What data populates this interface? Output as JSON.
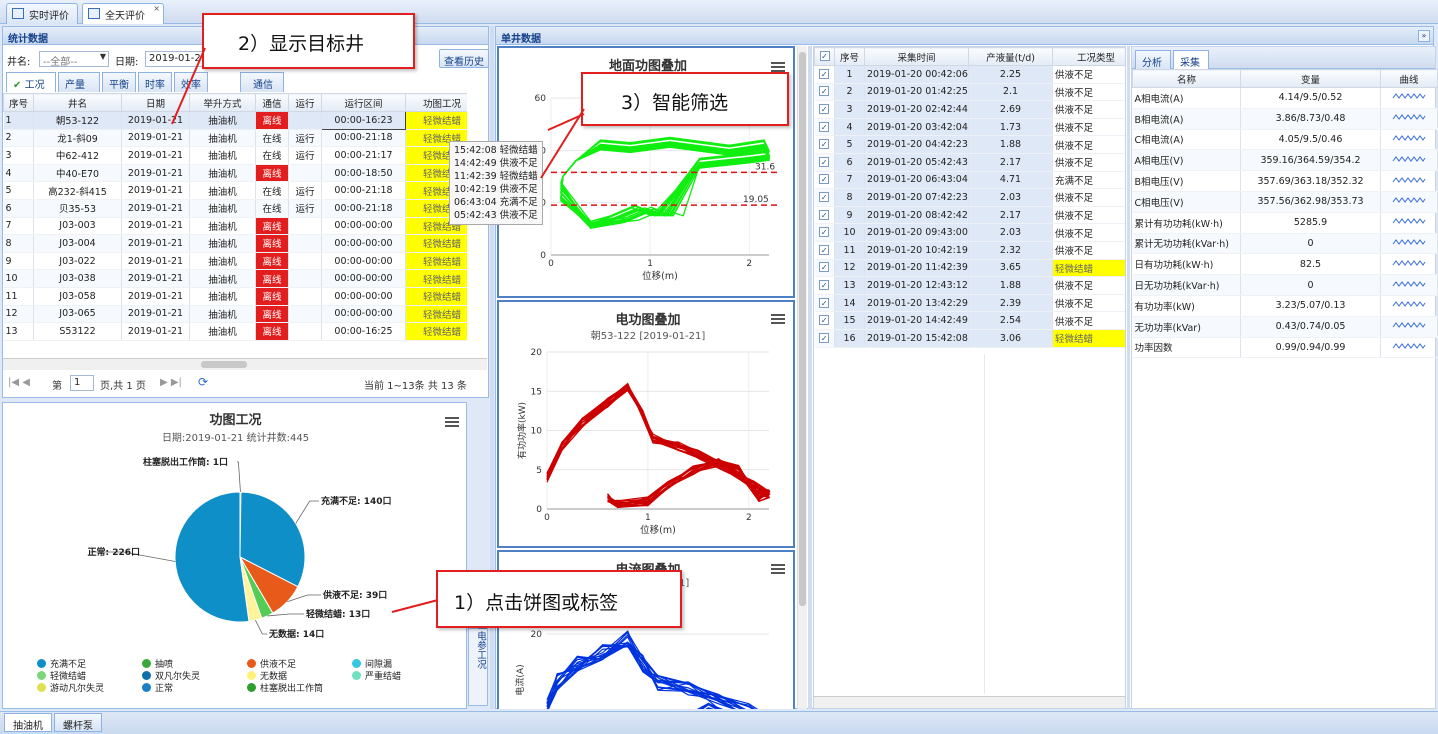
{
  "tabs": [
    {
      "label": "实时评价"
    },
    {
      "label": "全天评价"
    }
  ],
  "stats": {
    "title": "统计数据",
    "well_label": "井名:",
    "well_value": "--全部--",
    "date_label": "日期:",
    "date_value": "2019-01-21",
    "history_btn": "查看历史",
    "subtabs": [
      "工况",
      "产量",
      "平衡",
      "时率",
      "效率",
      "通信"
    ],
    "columns": [
      "序号",
      "井名",
      "日期",
      "举升方式",
      "通信",
      "运行",
      "运行区间",
      "功图工况"
    ],
    "rows": [
      [
        "1",
        "朝53-122",
        "2019-01-21",
        "抽油机",
        "离线",
        "",
        "00:00-16:23",
        "轻微结蜡"
      ],
      [
        "2",
        "龙1-斜09",
        "2019-01-21",
        "抽油机",
        "在线",
        "运行",
        "00:00-21:18",
        "轻微结蜡"
      ],
      [
        "3",
        "中62-412",
        "2019-01-21",
        "抽油机",
        "在线",
        "运行",
        "00:00-21:17",
        "轻微结蜡"
      ],
      [
        "4",
        "中40-E70",
        "2019-01-21",
        "抽油机",
        "离线",
        "",
        "00:00-18:50",
        "轻微结蜡"
      ],
      [
        "5",
        "高232-斜415",
        "2019-01-21",
        "抽油机",
        "在线",
        "运行",
        "00:00-21:18",
        "轻微结蜡"
      ],
      [
        "6",
        "贝35-53",
        "2019-01-21",
        "抽油机",
        "在线",
        "运行",
        "00:00-21:18",
        "轻微结蜡"
      ],
      [
        "7",
        "J03-003",
        "2019-01-21",
        "抽油机",
        "离线",
        "",
        "00:00-00:00",
        "轻微结蜡"
      ],
      [
        "8",
        "J03-004",
        "2019-01-21",
        "抽油机",
        "离线",
        "",
        "00:00-00:00",
        "轻微结蜡"
      ],
      [
        "9",
        "J03-022",
        "2019-01-21",
        "抽油机",
        "离线",
        "",
        "00:00-00:00",
        "轻微结蜡"
      ],
      [
        "10",
        "J03-038",
        "2019-01-21",
        "抽油机",
        "离线",
        "",
        "00:00-00:00",
        "轻微结蜡"
      ],
      [
        "11",
        "J03-058",
        "2019-01-21",
        "抽油机",
        "离线",
        "",
        "00:00-00:00",
        "轻微结蜡"
      ],
      [
        "12",
        "J03-065",
        "2019-01-21",
        "抽油机",
        "离线",
        "",
        "00:00-00:00",
        "轻微结蜡"
      ],
      [
        "13",
        "S53122",
        "2019-01-21",
        "抽油机",
        "离线",
        "",
        "00:00-16:25",
        "轻微结蜡"
      ]
    ],
    "pager": {
      "page_prefix": "第",
      "page": "1",
      "page_suffix": "页,共 1 页",
      "summary": "当前 1~13条 共 13 条"
    }
  },
  "pie": {
    "title": "功图工况",
    "subtitle": "日期:2019-01-21 统计井数:445",
    "labels": [
      {
        "text": "柱塞脱出工作筒: 1口"
      },
      {
        "text": "充满不足: 140口"
      },
      {
        "text": "正常: 226口"
      },
      {
        "text": "供液不足: 39口"
      },
      {
        "text": "轻微结蜡: 13口"
      },
      {
        "text": "无数据: 14口"
      }
    ],
    "legend": [
      "充满不足",
      "抽喷",
      "供液不足",
      "间隙漏",
      "轻微结蜡",
      "双凡尔失灵",
      "无数据",
      "严重结蜡",
      "游动凡尔失灵",
      "正常",
      "柱塞脱出工作筒"
    ]
  },
  "chart_data": [
    {
      "type": "pie",
      "title": "功图工况",
      "subtitle": "日期:2019-01-21 统计井数:445",
      "slices": [
        {
          "name": "正常",
          "value": 226,
          "color": "#0f8fc8"
        },
        {
          "name": "充满不足",
          "value": 140,
          "color": "#0f8fc8"
        },
        {
          "name": "供液不足",
          "value": 39,
          "color": "#e85a19"
        },
        {
          "name": "无数据",
          "value": 14,
          "color": "#fff59d"
        },
        {
          "name": "轻微结蜡",
          "value": 13,
          "color": "#66cc66"
        },
        {
          "name": "柱塞脱出工作筒",
          "value": 1,
          "color": "#2ca02c"
        }
      ]
    },
    {
      "type": "line",
      "title": "地面功图叠加",
      "xlabel": "位移(m)",
      "ylabel": "",
      "xlim": [
        0,
        2.2
      ],
      "ylim": [
        0,
        60
      ],
      "x_ticks": [
        "0",
        "1",
        "2"
      ],
      "y_ticks": [
        "0",
        "20",
        "40",
        "60"
      ],
      "ref_lines": [
        {
          "value": 31.6,
          "label": "31.6"
        },
        {
          "value": 19.05,
          "label": "19.05"
        }
      ]
    },
    {
      "type": "line",
      "title": "电功图叠加",
      "subtitle": "朝53-122 [2019-01-21]",
      "xlabel": "位移(m)",
      "ylabel": "有功功率(kW)",
      "xlim": [
        0,
        2.2
      ],
      "ylim": [
        0,
        20
      ],
      "x_ticks": [
        "0",
        "1",
        "2"
      ],
      "y_ticks": [
        "0",
        "5",
        "10",
        "15",
        "20"
      ]
    },
    {
      "type": "line",
      "title": "电流图叠加",
      "subtitle": "-21]",
      "xlabel": "",
      "ylabel": "电流(A)",
      "y_ticks": [
        "20"
      ]
    }
  ],
  "single": {
    "title": "单井数据"
  },
  "dyn_chart": {
    "title": "地面功图叠加",
    "xlabel": "位移(m)",
    "line1": "31.6",
    "line2": "19.05",
    "xticks": [
      "0",
      "1",
      "2"
    ],
    "yticks": [
      "0",
      "20",
      "40",
      "60"
    ]
  },
  "elec_chart": {
    "title": "电功图叠加",
    "subtitle": "朝53-122 [2019-01-21]",
    "xlabel": "位移(m)",
    "ylabel": "有功功率(kW)",
    "xticks": [
      "0",
      "1",
      "2"
    ],
    "yticks": [
      "0",
      "5",
      "10",
      "15",
      "20"
    ]
  },
  "cur_chart": {
    "title": "电流图叠加",
    "subtitle": "-21]",
    "ylabel": "电流(A)",
    "ytick": "20"
  },
  "side_labels": {
    "a": "图",
    "b": "电参工况"
  },
  "tooltip": [
    "15:42:08 轻微结蜡",
    "14:42:49 供液不足",
    "11:42:39 轻微结蜡",
    "10:42:19 供液不足",
    "06:43:04 充满不足",
    "05:42:43 供液不足"
  ],
  "samples": {
    "columns": [
      "序号",
      "采集时间",
      "产液量(t/d)",
      "工况类型"
    ],
    "rows": [
      [
        "1",
        "2019-01-20 00:42:06",
        "2.25",
        "供液不足"
      ],
      [
        "2",
        "2019-01-20 01:42:25",
        "2.1",
        "供液不足"
      ],
      [
        "3",
        "2019-01-20 02:42:44",
        "2.69",
        "供液不足"
      ],
      [
        "4",
        "2019-01-20 03:42:04",
        "1.73",
        "供液不足"
      ],
      [
        "5",
        "2019-01-20 04:42:23",
        "1.88",
        "供液不足"
      ],
      [
        "6",
        "2019-01-20 05:42:43",
        "2.17",
        "供液不足"
      ],
      [
        "7",
        "2019-01-20 06:43:04",
        "4.71",
        "充满不足"
      ],
      [
        "8",
        "2019-01-20 07:42:23",
        "2.03",
        "供液不足"
      ],
      [
        "9",
        "2019-01-20 08:42:42",
        "2.17",
        "供液不足"
      ],
      [
        "10",
        "2019-01-20 09:43:00",
        "2.03",
        "供液不足"
      ],
      [
        "11",
        "2019-01-20 10:42:19",
        "2.32",
        "供液不足"
      ],
      [
        "12",
        "2019-01-20 11:42:39",
        "3.65",
        "轻微结蜡"
      ],
      [
        "13",
        "2019-01-20 12:43:12",
        "1.88",
        "供液不足"
      ],
      [
        "14",
        "2019-01-20 13:42:29",
        "2.39",
        "供液不足"
      ],
      [
        "15",
        "2019-01-20 14:42:49",
        "2.54",
        "供液不足"
      ],
      [
        "16",
        "2019-01-20 15:42:08",
        "3.06",
        "轻微结蜡"
      ]
    ]
  },
  "analysis": {
    "tabs": [
      "分析",
      "采集"
    ],
    "columns": [
      "名称",
      "变量",
      "曲线"
    ],
    "rows": [
      [
        "A相电流(A)",
        "4.14/9.5/0.52"
      ],
      [
        "B相电流(A)",
        "3.86/8.73/0.48"
      ],
      [
        "C相电流(A)",
        "4.05/9.5/0.46"
      ],
      [
        "A相电压(V)",
        "359.16/364.59/354.2"
      ],
      [
        "B相电压(V)",
        "357.69/363.18/352.32"
      ],
      [
        "C相电压(V)",
        "357.56/362.98/353.73"
      ],
      [
        "累计有功功耗(kW·h)",
        "5285.9"
      ],
      [
        "累计无功功耗(kVar·h)",
        "0"
      ],
      [
        "日有功功耗(kW·h)",
        "82.5"
      ],
      [
        "日无功功耗(kVar·h)",
        "0"
      ],
      [
        "有功功率(kW)",
        "3.23/5.07/0.13"
      ],
      [
        "无功功率(kVar)",
        "0.43/0.74/0.05"
      ],
      [
        "功率因数",
        "0.99/0.94/0.99"
      ]
    ]
  },
  "callouts": {
    "c1": "1）点击饼图或标签",
    "c2": "2）显示目标井",
    "c3": "3）智能筛选"
  },
  "bottom_tabs": [
    "抽油机",
    "螺杆泵"
  ],
  "colors": {
    "offline": "#e21e1e",
    "warn": "#ffff00",
    "green": "#11ee11",
    "red": "#cc0000",
    "blue": "#0033dd"
  }
}
